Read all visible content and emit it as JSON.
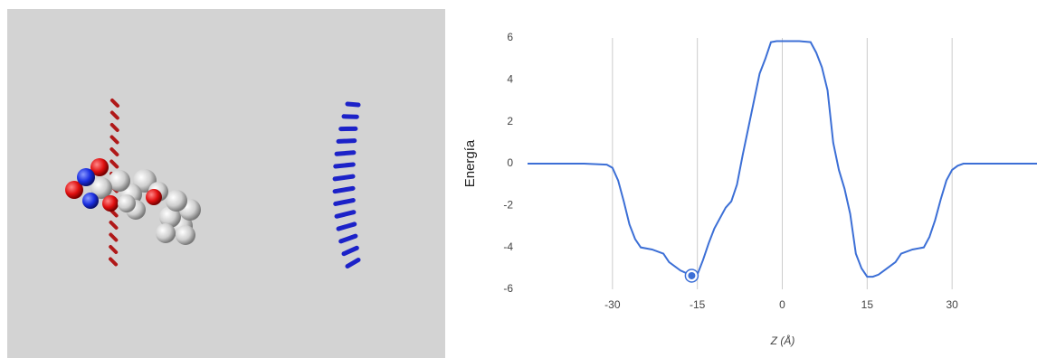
{
  "chart_data": {
    "type": "line",
    "x_label": "Z (Å)",
    "y_label": "Energía",
    "x": [
      -45,
      -35,
      -31,
      -30,
      -29,
      -28,
      -27,
      -26,
      -25,
      -23,
      -21,
      -20,
      -18,
      -16,
      -15,
      -14,
      -13,
      -12,
      -10,
      -9,
      -8,
      -7,
      -6,
      -5,
      -4,
      -3,
      -2,
      -1,
      0,
      3,
      5,
      6,
      7,
      8,
      9,
      10,
      11,
      12,
      13,
      14,
      15,
      16,
      17,
      18,
      20,
      21,
      23,
      25,
      26,
      27,
      28,
      29,
      30,
      31,
      32,
      45
    ],
    "series": [
      {
        "name": "Energía",
        "color": "#3c6fd6",
        "values": [
          0,
          0,
          -0.05,
          -0.2,
          -0.8,
          -1.8,
          -2.9,
          -3.6,
          -4.0,
          -4.1,
          -4.3,
          -4.7,
          -5.1,
          -5.35,
          -5.3,
          -4.6,
          -3.8,
          -3.1,
          -2.1,
          -1.8,
          -1.0,
          0.4,
          1.7,
          3.0,
          4.3,
          5.0,
          5.8,
          5.85,
          5.85,
          5.85,
          5.8,
          5.3,
          4.6,
          3.5,
          1.0,
          -0.3,
          -1.2,
          -2.4,
          -4.3,
          -5.0,
          -5.4,
          -5.4,
          -5.3,
          -5.1,
          -4.7,
          -4.3,
          -4.1,
          -4.0,
          -3.5,
          -2.7,
          -1.7,
          -0.8,
          -0.3,
          -0.1,
          0,
          0
        ]
      }
    ],
    "highlight_index": 13,
    "xlim": [
      -45,
      45
    ],
    "xticks": [
      -30,
      -15,
      0,
      15,
      30
    ],
    "ylim": [
      -6,
      6
    ],
    "yticks": [
      -6,
      -4,
      -2,
      0,
      2,
      4,
      6
    ],
    "x_grid": true
  }
}
